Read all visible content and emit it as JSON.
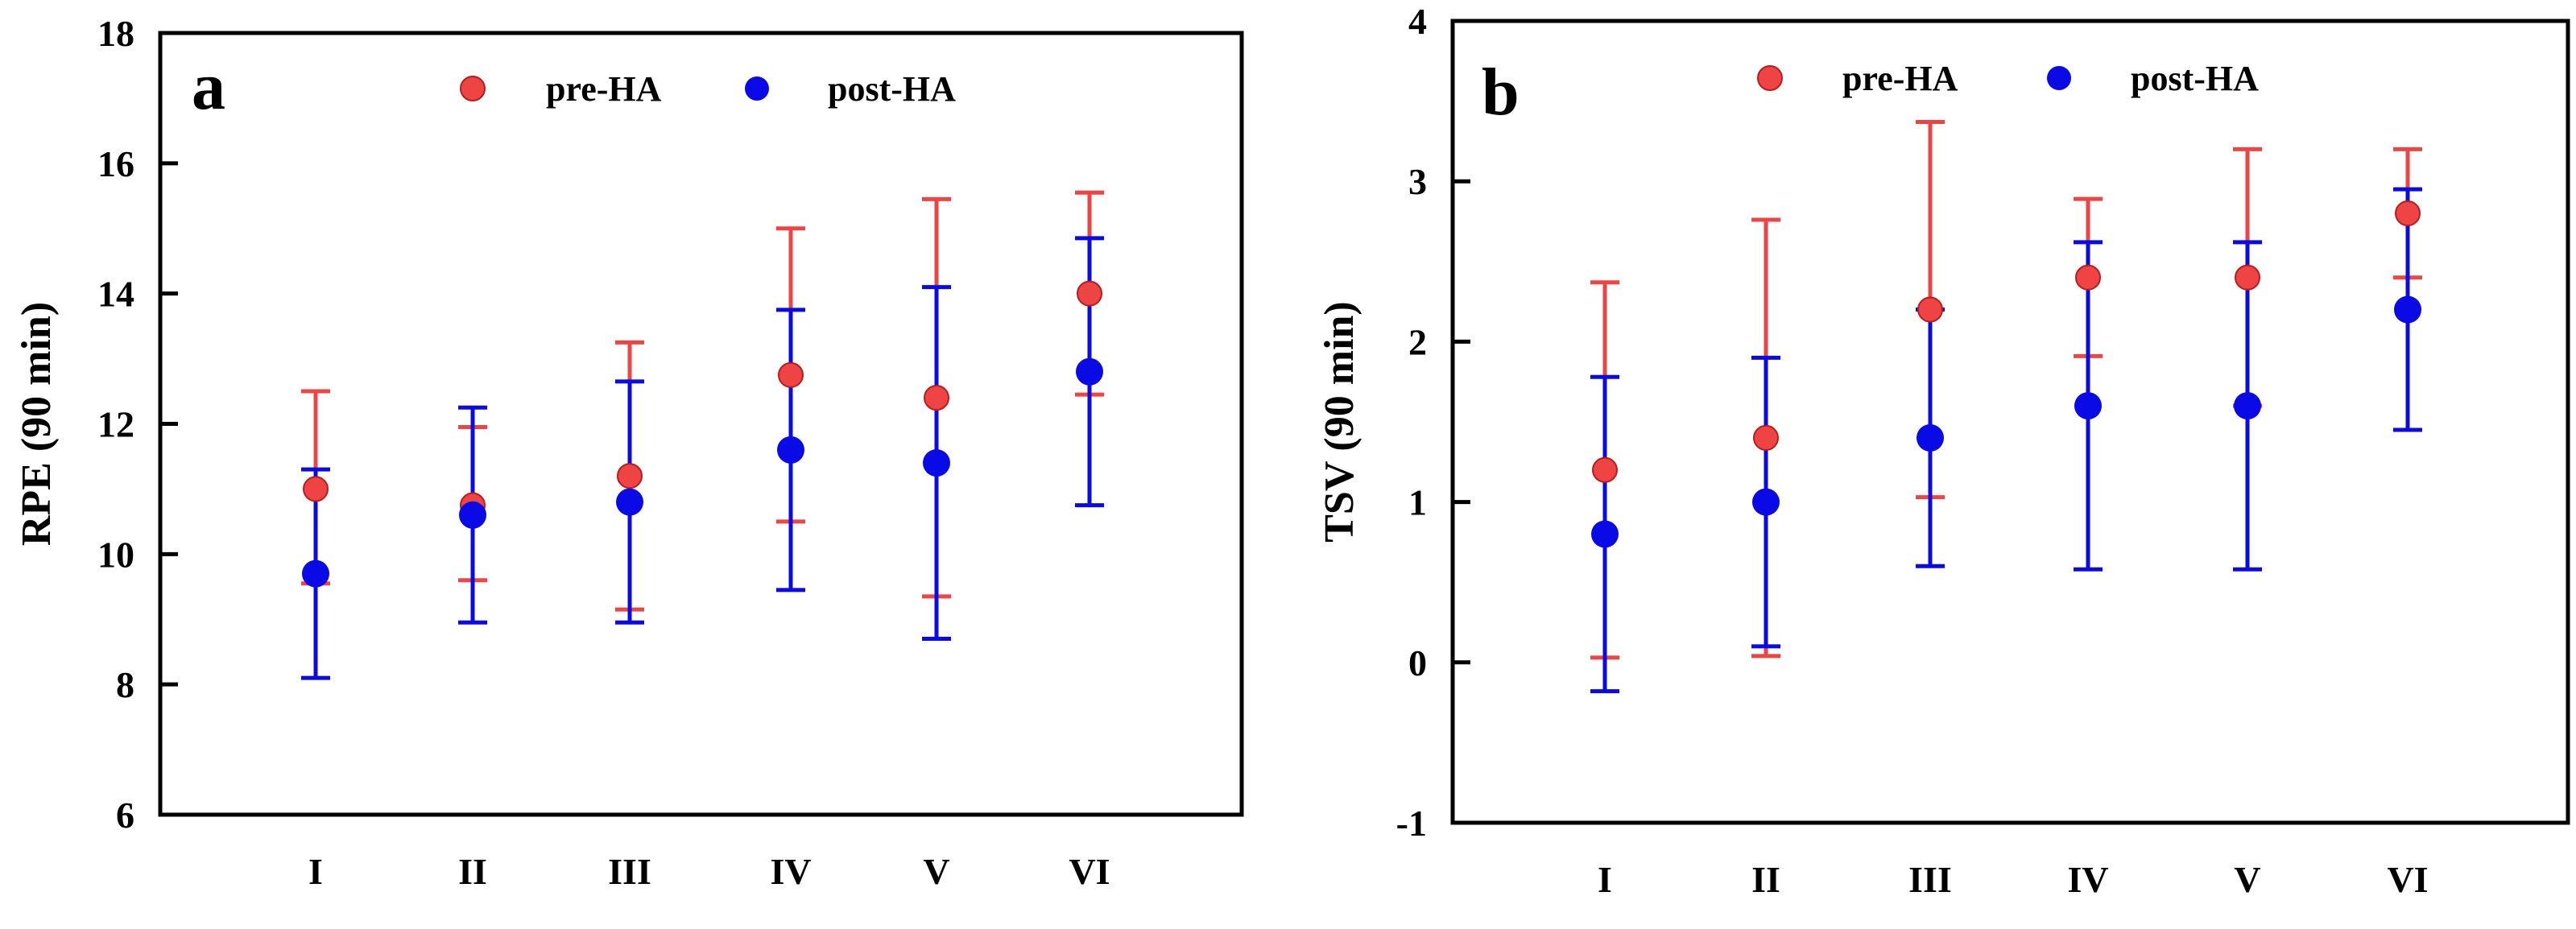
{
  "colors": {
    "pre": "#ef4444",
    "post": "#0a0ae6",
    "axis": "#000000"
  },
  "chart_data": [
    {
      "type": "scatter",
      "panel_label": "a",
      "title": "",
      "xlabel": "",
      "ylabel": "RPE (90 min)",
      "ylim": [
        6,
        18
      ],
      "yticks": [
        "6",
        "8",
        "10",
        "12",
        "14",
        "16",
        "18"
      ],
      "categories": [
        "I",
        "II",
        "III",
        "IV",
        "V",
        "VI"
      ],
      "legend": [
        "pre-HA",
        "post-HA"
      ],
      "series": [
        {
          "name": "pre-HA",
          "values": [
            11.0,
            10.75,
            11.2,
            12.75,
            12.4,
            14.0
          ],
          "err_low": [
            9.55,
            9.6,
            9.15,
            10.5,
            9.35,
            12.45
          ],
          "err_high": [
            12.5,
            11.95,
            13.25,
            15.0,
            15.45,
            15.55
          ]
        },
        {
          "name": "post-HA",
          "values": [
            9.7,
            10.6,
            10.8,
            11.6,
            11.4,
            12.8
          ],
          "err_low": [
            8.1,
            8.95,
            8.95,
            9.45,
            8.7,
            10.75
          ],
          "err_high": [
            11.3,
            12.25,
            12.65,
            13.75,
            14.1,
            14.85
          ]
        }
      ]
    },
    {
      "type": "scatter",
      "panel_label": "b",
      "title": "",
      "xlabel": "",
      "ylabel": "TSV (90 min)",
      "ylim": [
        -1,
        4
      ],
      "yticks": [
        "-1",
        "0",
        "1",
        "2",
        "3",
        "4"
      ],
      "categories": [
        "I",
        "II",
        "III",
        "IV",
        "V",
        "VI"
      ],
      "legend": [
        "pre-HA",
        "post-HA"
      ],
      "series": [
        {
          "name": "pre-HA",
          "values": [
            1.2,
            1.4,
            2.2,
            2.4,
            2.4,
            2.8
          ],
          "err_low": [
            0.03,
            0.04,
            1.03,
            1.91,
            1.6,
            2.4
          ],
          "err_high": [
            2.37,
            2.76,
            3.37,
            2.89,
            3.2,
            3.2
          ]
        },
        {
          "name": "post-HA",
          "values": [
            0.8,
            1.0,
            1.4,
            1.6,
            1.6,
            2.2
          ],
          "err_low": [
            -0.18,
            0.1,
            0.6,
            0.58,
            0.58,
            1.45
          ],
          "err_high": [
            1.78,
            1.9,
            2.2,
            2.62,
            2.62,
            2.95
          ]
        }
      ]
    }
  ]
}
